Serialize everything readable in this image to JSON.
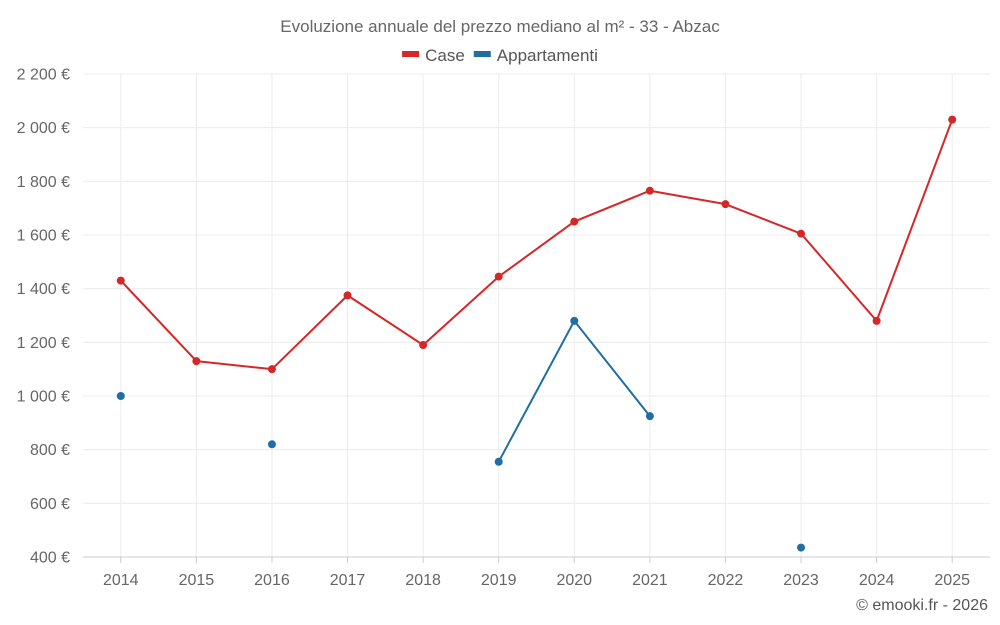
{
  "chart_data": {
    "type": "line",
    "title": "Evoluzione annuale del prezzo mediano al m² - 33 - Abzac",
    "categories": [
      "2014",
      "2015",
      "2016",
      "2017",
      "2018",
      "2019",
      "2020",
      "2021",
      "2022",
      "2023",
      "2024",
      "2025"
    ],
    "y_ticks": [
      400,
      600,
      800,
      1000,
      1200,
      1400,
      1600,
      1800,
      2000,
      2200
    ],
    "y_tick_labels": [
      "400 €",
      "600 €",
      "800 €",
      "1 000 €",
      "1 200 €",
      "1 400 €",
      "1 600 €",
      "1 800 €",
      "2 000 €",
      "2 200 €"
    ],
    "ylim": [
      400,
      2200
    ],
    "grid": true,
    "legend_position": "top",
    "series": [
      {
        "name": "Case",
        "color": "#d62728",
        "values": [
          1430,
          1130,
          1100,
          1375,
          1190,
          1445,
          1650,
          1765,
          1715,
          1605,
          1280,
          2030
        ]
      },
      {
        "name": "Appartamenti",
        "color": "#1f6fa5",
        "values": [
          1000,
          null,
          820,
          null,
          null,
          755,
          1280,
          925,
          null,
          435,
          null,
          null
        ]
      }
    ]
  },
  "credit": "© emooki.fr - 2026"
}
